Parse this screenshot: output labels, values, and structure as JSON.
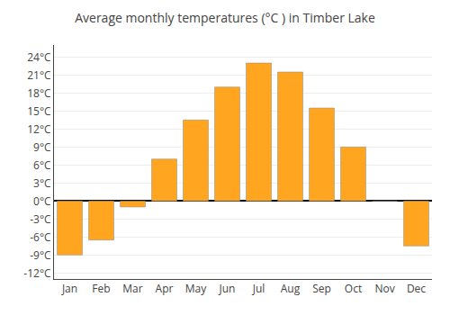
{
  "chart_data": {
    "type": "bar",
    "title": "Average monthly temperatures (°C ) in Timber Lake",
    "categories": [
      "Jan",
      "Feb",
      "Mar",
      "Apr",
      "May",
      "Jun",
      "Jul",
      "Aug",
      "Sep",
      "Oct",
      "Nov",
      "Dec"
    ],
    "values": [
      -9,
      -6.5,
      -1,
      7,
      13.5,
      19,
      23,
      21.5,
      15.5,
      9,
      0,
      -7.5
    ],
    "color": "#FFA520",
    "ylim": [
      -13,
      26
    ],
    "yticks": [
      {
        "value": -12,
        "label": "-12°C"
      },
      {
        "value": -9,
        "label": "-9°C"
      },
      {
        "value": -6,
        "label": "-6°C"
      },
      {
        "value": -3,
        "label": "-3°C"
      },
      {
        "value": 0,
        "label": "0°C"
      },
      {
        "value": 3,
        "label": "3°C"
      },
      {
        "value": 6,
        "label": "6°C"
      },
      {
        "value": 9,
        "label": "9°C"
      },
      {
        "value": 12,
        "label": "12°C"
      },
      {
        "value": 15,
        "label": "15°C"
      },
      {
        "value": 18,
        "label": "18°C"
      },
      {
        "value": 21,
        "label": "21°C"
      },
      {
        "value": 24,
        "label": "24°C"
      }
    ],
    "grid": true
  }
}
